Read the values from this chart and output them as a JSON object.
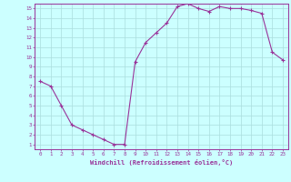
{
  "x": [
    0,
    1,
    2,
    3,
    4,
    5,
    6,
    7,
    8,
    9,
    10,
    11,
    12,
    13,
    14,
    15,
    16,
    17,
    18,
    19,
    20,
    21,
    22,
    23
  ],
  "y": [
    7.5,
    7.0,
    5.0,
    3.0,
    2.5,
    2.0,
    1.5,
    1.0,
    1.0,
    9.5,
    11.5,
    12.5,
    13.5,
    15.2,
    15.5,
    15.0,
    14.7,
    15.2,
    15.0,
    15.0,
    14.8,
    14.5,
    10.5,
    9.7
  ],
  "line_color": "#993399",
  "marker": "+",
  "marker_size": 3,
  "bg_color": "#ccffff",
  "grid_color": "#aadddd",
  "xlabel": "Windchill (Refroidissement éolien,°C)",
  "xlim": [
    -0.5,
    23.5
  ],
  "ylim": [
    0.5,
    15.5
  ],
  "xticks": [
    0,
    1,
    2,
    3,
    4,
    5,
    6,
    7,
    8,
    9,
    10,
    11,
    12,
    13,
    14,
    15,
    16,
    17,
    18,
    19,
    20,
    21,
    22,
    23
  ],
  "yticks": [
    1,
    2,
    3,
    4,
    5,
    6,
    7,
    8,
    9,
    10,
    11,
    12,
    13,
    14,
    15
  ],
  "tick_color": "#993399",
  "label_color": "#993399",
  "axis_color": "#993399"
}
